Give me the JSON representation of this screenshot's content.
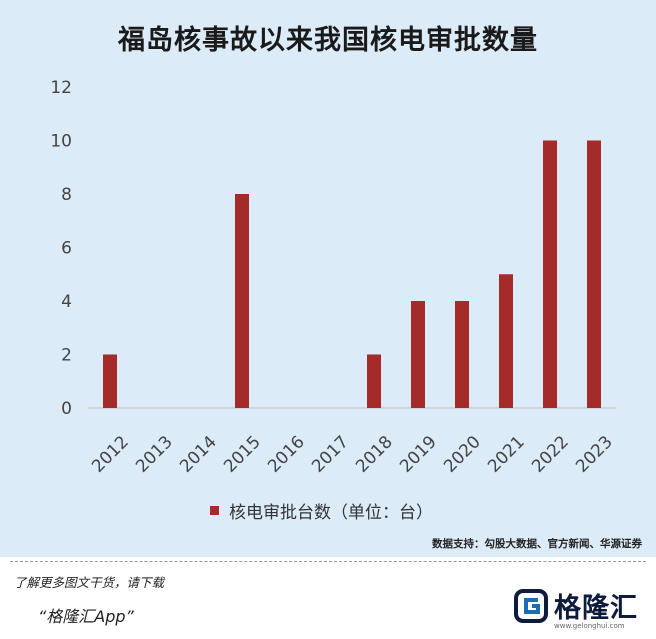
{
  "title": "福岛核事故以来我国核电审批数量",
  "chart_data": {
    "type": "bar",
    "categories": [
      "2012",
      "2013",
      "2014",
      "2015",
      "2016",
      "2017",
      "2018",
      "2019",
      "2020",
      "2021",
      "2022",
      "2023"
    ],
    "series": [
      {
        "name": "核电审批台数（单位：台）",
        "values": [
          2,
          0,
          0,
          8,
          0,
          0,
          2,
          4,
          4,
          5,
          10,
          10
        ],
        "color": "#a52a2a"
      }
    ],
    "ylim": [
      0,
      12
    ],
    "yticks": [
      "0",
      "2",
      "4",
      "6",
      "8",
      "10",
      "12"
    ],
    "grid": false,
    "legend_position": "bottom"
  },
  "legend_label": "核电审批台数（单位：台）",
  "source": "数据支持：勾股大数据、官方新闻、华源证券",
  "promo_line1": "了解更多图文干货，请下载",
  "promo_line2": "“格隆汇App”",
  "brand_name": "格隆汇",
  "brand_url": "www.gelonghui.com",
  "brand_color": "#0e1b3d",
  "accent_color": "#1e6ab4"
}
